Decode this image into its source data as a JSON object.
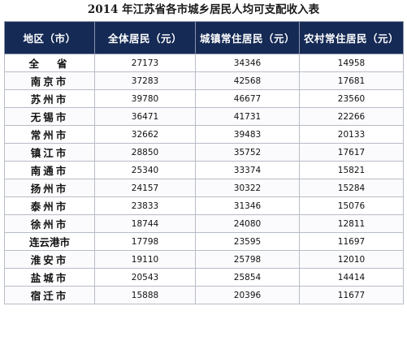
{
  "title": "2014 年江苏省各市城乡居民人均可支配收入表",
  "table": {
    "headers": [
      "地区（市）",
      "全体居民（元）",
      "城镇常住居民（元）",
      "农村常住居民（元）"
    ],
    "rows": [
      {
        "region": "全省",
        "all": "27173",
        "urban": "34346",
        "rural": "14958"
      },
      {
        "region": "南京市",
        "all": "37283",
        "urban": "42568",
        "rural": "17681"
      },
      {
        "region": "苏州市",
        "all": "39780",
        "urban": "46677",
        "rural": "23560"
      },
      {
        "region": "无锡市",
        "all": "36471",
        "urban": "41731",
        "rural": "22266"
      },
      {
        "region": "常州市",
        "all": "32662",
        "urban": "39483",
        "rural": "20133"
      },
      {
        "region": "镇江市",
        "all": "28850",
        "urban": "35752",
        "rural": "17617"
      },
      {
        "region": "南通市",
        "all": "25340",
        "urban": "33374",
        "rural": "15821"
      },
      {
        "region": "扬州市",
        "all": "24157",
        "urban": "30322",
        "rural": "15284"
      },
      {
        "region": "泰州市",
        "all": "23833",
        "urban": "31346",
        "rural": "15076"
      },
      {
        "region": "徐州市",
        "all": "18744",
        "urban": "24080",
        "rural": "12811"
      },
      {
        "region": "连云港市",
        "all": "17798",
        "urban": "23595",
        "rural": "11697"
      },
      {
        "region": "淮安市",
        "all": "19110",
        "urban": "25798",
        "rural": "12010"
      },
      {
        "region": "盐城市",
        "all": "20543",
        "urban": "25854",
        "rural": "14414"
      },
      {
        "region": "宿迁市",
        "all": "15888",
        "urban": "20396",
        "rural": "11677"
      }
    ]
  }
}
